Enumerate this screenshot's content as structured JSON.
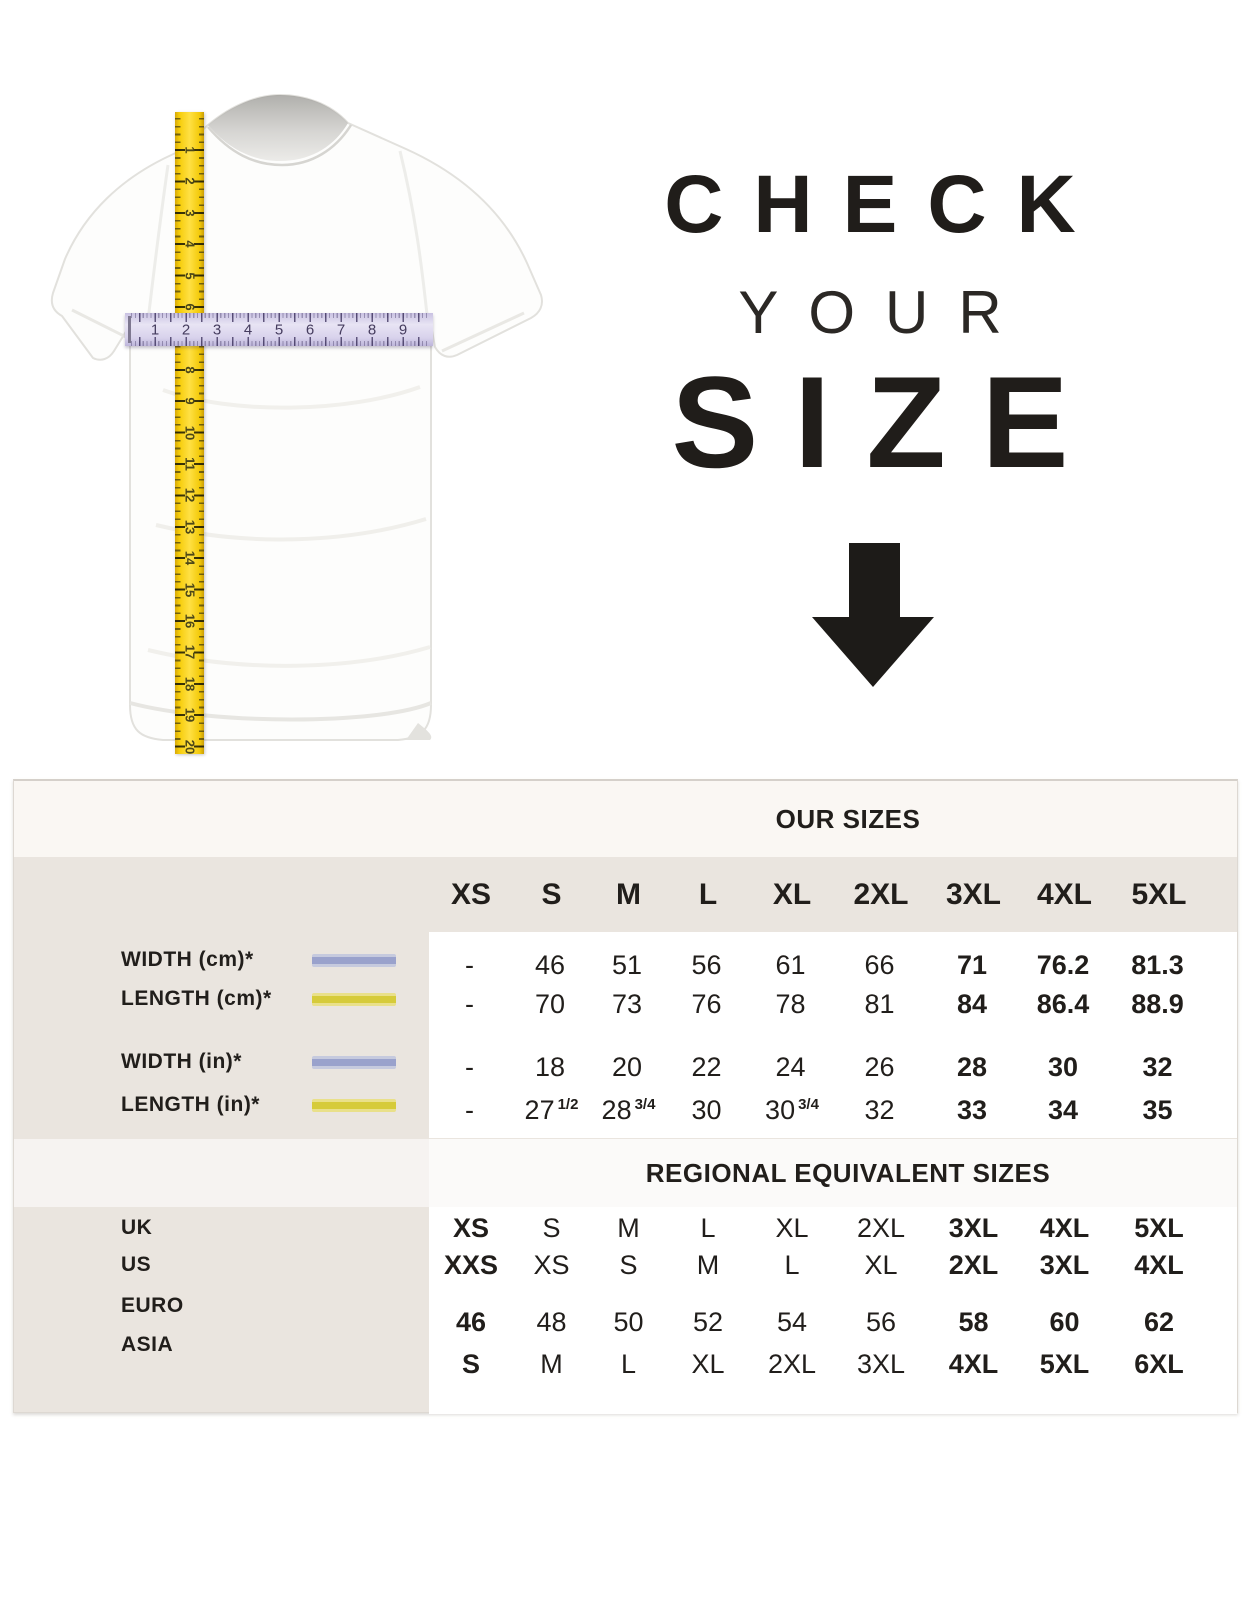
{
  "hero": {
    "line1": "CHECK",
    "line2": "YOUR",
    "line3": "SIZE"
  },
  "tshirt": {
    "vertical_tape_numbers": [
      "1",
      "2",
      "3",
      "4",
      "5",
      "6",
      "7",
      "8",
      "9",
      "10",
      "11",
      "12",
      "13",
      "14",
      "15",
      "16",
      "17",
      "18",
      "19",
      "20"
    ],
    "horizontal_tape_numbers": [
      "1",
      "2",
      "3",
      "4",
      "5",
      "6",
      "7",
      "8",
      "9"
    ]
  },
  "size_table": {
    "our_sizes_title": "OUR SIZES",
    "regional_title": "REGIONAL EQUIVALENT SIZES",
    "columns": [
      "XS",
      "S",
      "M",
      "L",
      "XL",
      "2XL",
      "3XL",
      "4XL",
      "5XL"
    ],
    "measurement_rows": [
      {
        "label": "WIDTH (cm)*",
        "swatch": "lavender",
        "values": [
          {
            "v": "-"
          },
          {
            "v": "46"
          },
          {
            "v": "51"
          },
          {
            "v": "56"
          },
          {
            "v": "61"
          },
          {
            "v": "66"
          },
          {
            "v": "71"
          },
          {
            "v": "76.2"
          },
          {
            "v": "81.3"
          }
        ]
      },
      {
        "label": "LENGTH (cm)*",
        "swatch": "yellow",
        "values": [
          {
            "v": "-"
          },
          {
            "v": "70"
          },
          {
            "v": "73"
          },
          {
            "v": "76"
          },
          {
            "v": "78"
          },
          {
            "v": "81"
          },
          {
            "v": "84"
          },
          {
            "v": "86.4"
          },
          {
            "v": "88.9"
          }
        ]
      },
      {
        "label": "WIDTH (in)*",
        "swatch": "lavender",
        "values": [
          {
            "v": "-"
          },
          {
            "v": "18"
          },
          {
            "v": "20"
          },
          {
            "v": "22"
          },
          {
            "v": "24"
          },
          {
            "v": "26"
          },
          {
            "v": "28"
          },
          {
            "v": "30"
          },
          {
            "v": "32"
          }
        ]
      },
      {
        "label": "LENGTH (in)*",
        "swatch": "yellow",
        "values": [
          {
            "v": "-"
          },
          {
            "v": "27",
            "f": "1/2"
          },
          {
            "v": "28",
            "f": "3/4"
          },
          {
            "v": "30"
          },
          {
            "v": "30",
            "f": "3/4"
          },
          {
            "v": "32"
          },
          {
            "v": "33"
          },
          {
            "v": "34"
          },
          {
            "v": "35"
          }
        ]
      }
    ],
    "regional_rows": [
      {
        "label": "UK",
        "values": [
          "XS",
          "S",
          "M",
          "L",
          "XL",
          "2XL",
          "3XL",
          "4XL",
          "5XL"
        ]
      },
      {
        "label": "US",
        "values": [
          "XXS",
          "XS",
          "S",
          "M",
          "L",
          "XL",
          "2XL",
          "3XL",
          "4XL"
        ]
      },
      {
        "label": "EURO",
        "values": [
          "46",
          "48",
          "50",
          "52",
          "54",
          "56",
          "58",
          "60",
          "62"
        ]
      },
      {
        "label": "ASIA",
        "values": [
          "S",
          "M",
          "L",
          "XL",
          "2XL",
          "3XL",
          "4XL",
          "5XL",
          "6XL"
        ]
      }
    ]
  },
  "colors": {
    "beige_panel": "#EAE5DF",
    "cream_band": "#FAF7F3",
    "text": "#211E1B",
    "tape_yellow": "#F6CD0A",
    "tape_lavender": "#D8D2EC",
    "swatch_lavender": "#9AA2CC",
    "swatch_yellow": "#D6CB3A"
  }
}
